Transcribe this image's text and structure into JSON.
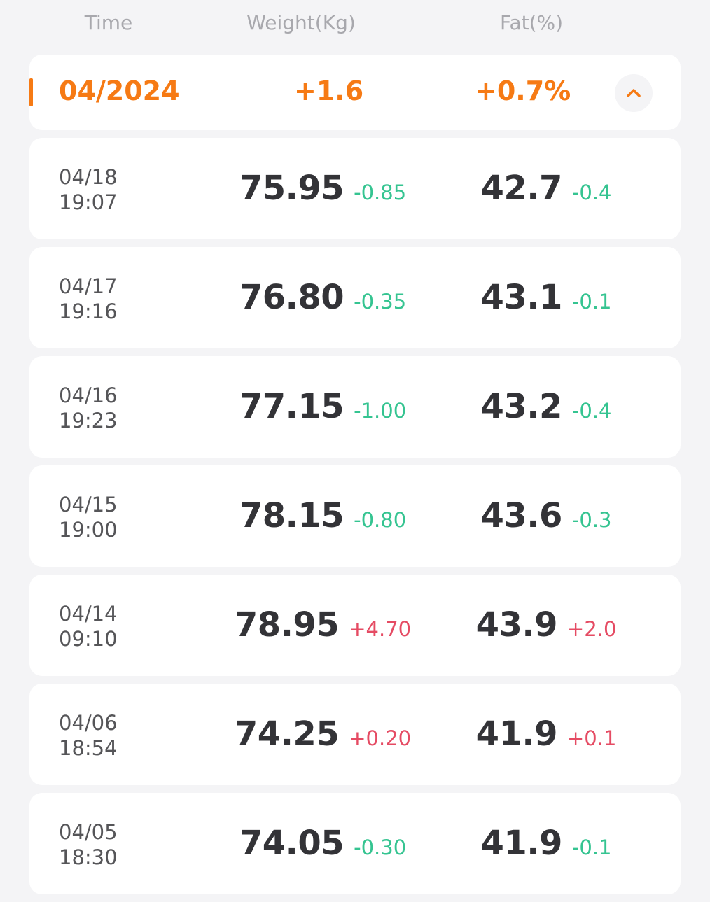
{
  "header": {
    "time_label": "Time",
    "weight_label": "Weight(Kg)",
    "fat_label": "Fat(%)"
  },
  "summary": {
    "month": "04/2024",
    "weight_change": "+1.6",
    "fat_change": "+0.7%",
    "toggle_icon": "chevron-up-icon"
  },
  "colors": {
    "accent": "#f67a14",
    "decrease": "#35c491",
    "increase": "#e54b63",
    "text_primary": "#333337",
    "text_secondary": "#555558",
    "header_text": "#a8a8ad",
    "background": "#f4f4f6"
  },
  "records": [
    {
      "date": "04/18",
      "time": "19:07",
      "weight": "75.95",
      "weight_delta": "-0.85",
      "weight_trend": "neg",
      "fat": "42.7",
      "fat_delta": "-0.4",
      "fat_trend": "neg"
    },
    {
      "date": "04/17",
      "time": "19:16",
      "weight": "76.80",
      "weight_delta": "-0.35",
      "weight_trend": "neg",
      "fat": "43.1",
      "fat_delta": "-0.1",
      "fat_trend": "neg"
    },
    {
      "date": "04/16",
      "time": "19:23",
      "weight": "77.15",
      "weight_delta": "-1.00",
      "weight_trend": "neg",
      "fat": "43.2",
      "fat_delta": "-0.4",
      "fat_trend": "neg"
    },
    {
      "date": "04/15",
      "time": "19:00",
      "weight": "78.15",
      "weight_delta": "-0.80",
      "weight_trend": "neg",
      "fat": "43.6",
      "fat_delta": "-0.3",
      "fat_trend": "neg"
    },
    {
      "date": "04/14",
      "time": "09:10",
      "weight": "78.95",
      "weight_delta": "+4.70",
      "weight_trend": "pos",
      "fat": "43.9",
      "fat_delta": "+2.0",
      "fat_trend": "pos"
    },
    {
      "date": "04/06",
      "time": "18:54",
      "weight": "74.25",
      "weight_delta": "+0.20",
      "weight_trend": "pos",
      "fat": "41.9",
      "fat_delta": "+0.1",
      "fat_trend": "pos"
    },
    {
      "date": "04/05",
      "time": "18:30",
      "weight": "74.05",
      "weight_delta": "-0.30",
      "weight_trend": "neg",
      "fat": "41.9",
      "fat_delta": "-0.1",
      "fat_trend": "neg"
    }
  ]
}
